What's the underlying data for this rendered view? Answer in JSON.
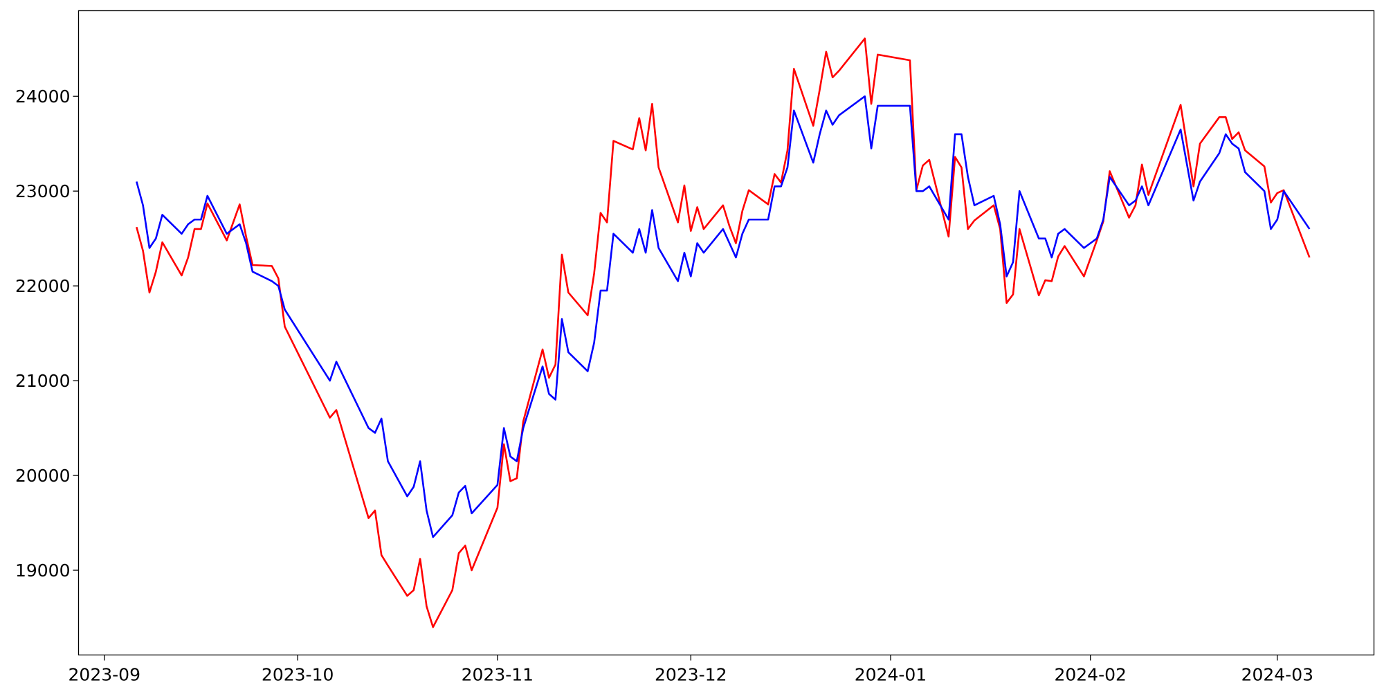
{
  "chart_data": {
    "type": "line",
    "x": [
      19606,
      19607,
      19608,
      19609,
      19610,
      19613,
      19614,
      19615,
      19616,
      19617,
      19620,
      19622,
      19623,
      19624,
      19627,
      19628,
      19629,
      19636,
      19637,
      19642,
      19643,
      19644,
      19645,
      19648,
      19649,
      19650,
      19651,
      19652,
      19655,
      19656,
      19657,
      19658,
      19662,
      19663,
      19664,
      19665,
      19666,
      19669,
      19670,
      19671,
      19672,
      19673,
      19676,
      19677,
      19678,
      19679,
      19680,
      19683,
      19684,
      19685,
      19686,
      19687,
      19690,
      19691,
      19692,
      19693,
      19694,
      19697,
      19698,
      19699,
      19700,
      19701,
      19704,
      19705,
      19706,
      19707,
      19708,
      19711,
      19712,
      19713,
      19714,
      19715,
      19719,
      19720,
      19721,
      19726,
      19727,
      19728,
      19729,
      19732,
      19733,
      19734,
      19735,
      19736,
      19739,
      19740,
      19741,
      19742,
      19743,
      19746,
      19747,
      19748,
      19749,
      19750,
      19753,
      19755,
      19756,
      19757,
      19760,
      19761,
      19762,
      19763,
      19768,
      19770,
      19771,
      19774,
      19775,
      19776,
      19777,
      19778,
      19781,
      19782,
      19783,
      19784,
      19788
    ],
    "series": [
      {
        "color": "red",
        "values": [
          22620,
          22370,
          21930,
          22150,
          22460,
          22110,
          22300,
          22600,
          22600,
          22870,
          22480,
          22860,
          22520,
          22220,
          22210,
          22080,
          21570,
          20610,
          20690,
          19550,
          19630,
          19160,
          19050,
          18730,
          18790,
          19120,
          18620,
          18400,
          18790,
          19180,
          19260,
          19000,
          19660,
          20330,
          19940,
          19970,
          20570,
          21330,
          21030,
          21170,
          22330,
          21930,
          21690,
          22130,
          22770,
          22670,
          23530,
          23440,
          23770,
          23430,
          23920,
          23250,
          22670,
          23060,
          22580,
          22830,
          22600,
          22850,
          22630,
          22450,
          22790,
          23010,
          22860,
          23180,
          23090,
          23430,
          24290,
          23690,
          24070,
          24470,
          24200,
          24270,
          24610,
          23920,
          24440,
          24380,
          23010,
          23270,
          23330,
          22520,
          23360,
          23250,
          22600,
          22690,
          22850,
          22600,
          21820,
          21910,
          22600,
          21900,
          22060,
          22050,
          22310,
          22420,
          22100,
          22480,
          22680,
          23210,
          22720,
          22850,
          23280,
          22960,
          23910,
          23050,
          23500,
          23780,
          23780,
          23550,
          23620,
          23430,
          23260,
          22880,
          22980,
          23010,
          22300
        ]
      },
      {
        "color": "blue",
        "values": [
          23100,
          22850,
          22400,
          22500,
          22750,
          22550,
          22650,
          22700,
          22700,
          22950,
          22550,
          22650,
          22450,
          22150,
          22050,
          22000,
          21750,
          21000,
          21200,
          20500,
          20450,
          20600,
          20150,
          19780,
          19880,
          20150,
          19630,
          19350,
          19580,
          19820,
          19890,
          19600,
          19900,
          20500,
          20200,
          20150,
          20500,
          21150,
          20860,
          20800,
          21650,
          21300,
          21100,
          21400,
          21950,
          21950,
          22550,
          22350,
          22600,
          22350,
          22800,
          22400,
          22050,
          22350,
          22100,
          22450,
          22350,
          22600,
          22450,
          22300,
          22550,
          22700,
          22700,
          23050,
          23050,
          23250,
          23850,
          23300,
          23600,
          23850,
          23700,
          23800,
          24000,
          23450,
          23900,
          23900,
          23000,
          23000,
          23050,
          22700,
          23600,
          23600,
          23150,
          22850,
          22950,
          22650,
          22100,
          22250,
          23000,
          22500,
          22500,
          22300,
          22550,
          22600,
          22400,
          22500,
          22700,
          23150,
          22850,
          22900,
          23050,
          22850,
          23650,
          22900,
          23100,
          23400,
          23600,
          23500,
          23450,
          23200,
          23000,
          22600,
          22700,
          23000,
          22600
        ]
      }
    ],
    "xlim": [
      19597,
      19798
    ],
    "ylim": [
      18106,
      24903
    ],
    "xticks": [
      {
        "value": 19601,
        "label": "2023-09"
      },
      {
        "value": 19631,
        "label": "2023-10"
      },
      {
        "value": 19662,
        "label": "2023-11"
      },
      {
        "value": 19692,
        "label": "2023-12"
      },
      {
        "value": 19723,
        "label": "2024-01"
      },
      {
        "value": 19754,
        "label": "2024-02"
      },
      {
        "value": 19783,
        "label": "2024-03"
      }
    ],
    "yticks": [
      19000,
      20000,
      21000,
      22000,
      23000,
      24000
    ],
    "grid": false
  }
}
